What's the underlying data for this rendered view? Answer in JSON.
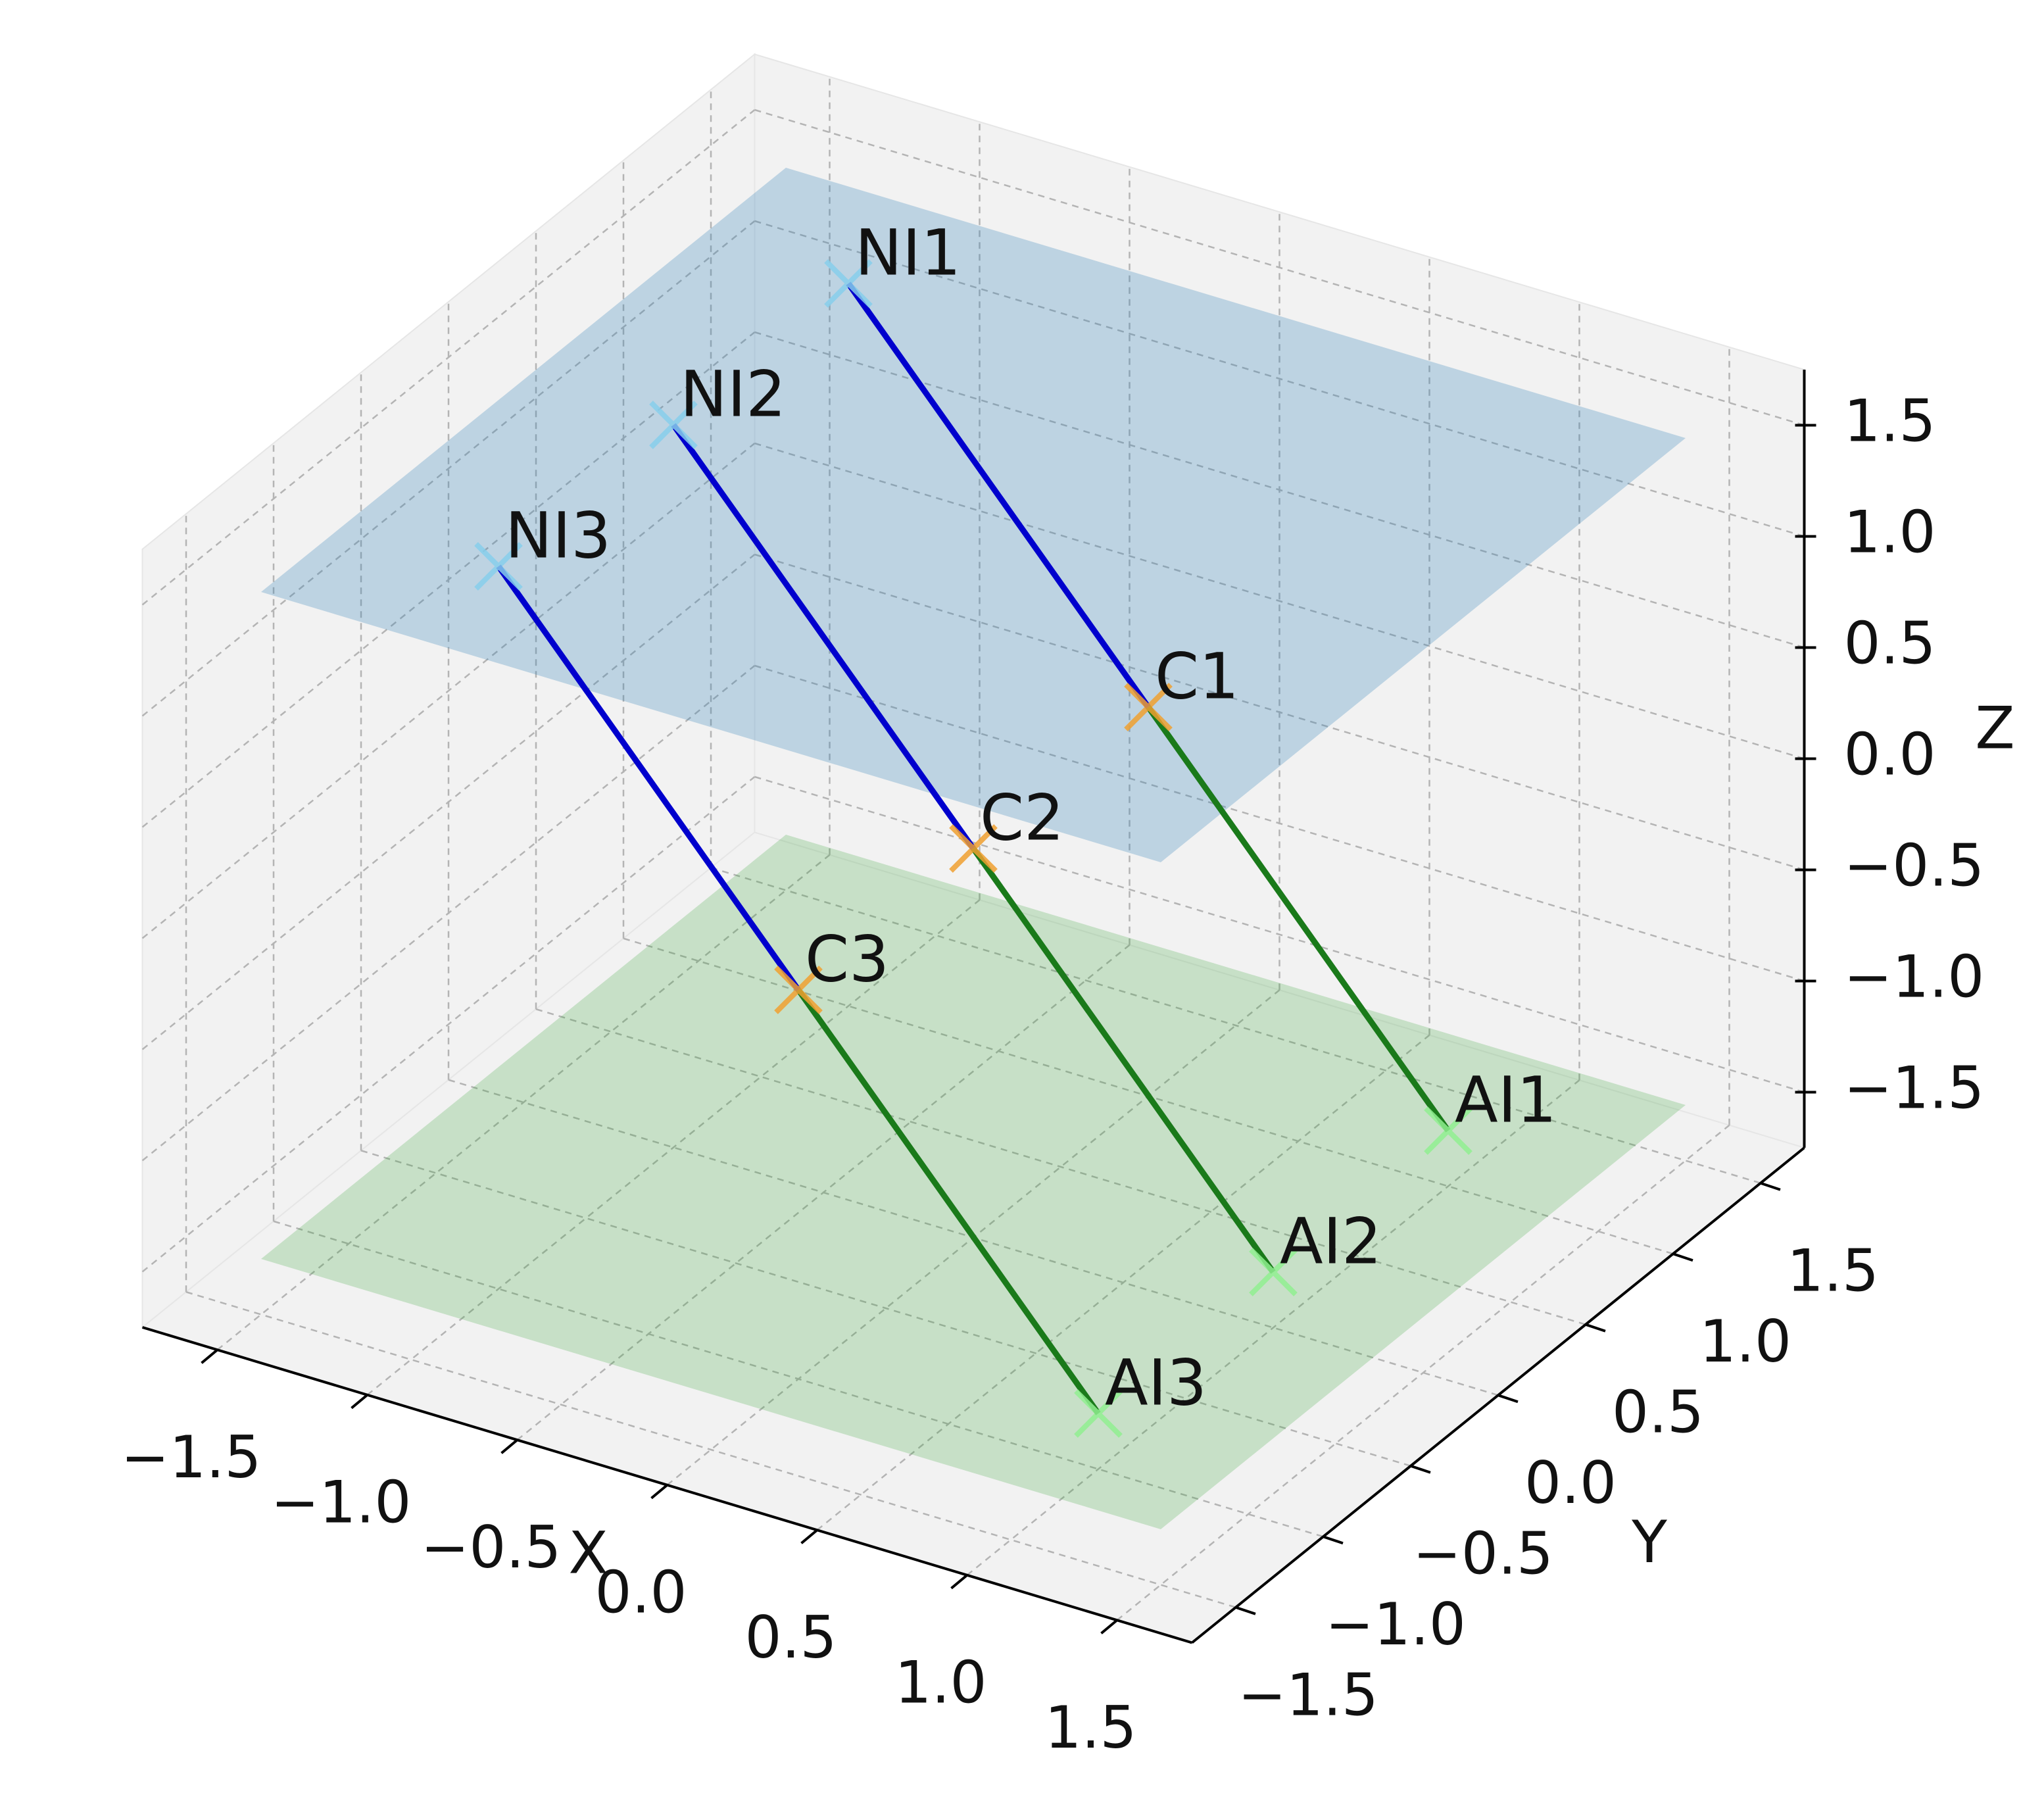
{
  "chart_data": {
    "type": "line3d",
    "xlabel": "X",
    "ylabel": "Y",
    "zlabel": "Z",
    "xlim": [
      -1.75,
      1.75
    ],
    "ylim": [
      -1.75,
      1.75
    ],
    "zlim": [
      -1.75,
      1.75
    ],
    "xticks": [
      {
        "value": -1.5,
        "label": "−1.5"
      },
      {
        "value": -1.0,
        "label": "−1.0"
      },
      {
        "value": -0.5,
        "label": "−0.5"
      },
      {
        "value": 0,
        "label": "0.0"
      },
      0.5,
      {
        "value": 1.0,
        "label": "1.0"
      },
      1.5
    ],
    "yticks": [
      {
        "value": -1.5,
        "label": "−1.5"
      },
      {
        "value": -1.0,
        "label": "−1.0"
      },
      {
        "value": -0.5,
        "label": "−0.5"
      },
      {
        "value": 0,
        "label": "0.0"
      },
      0.5,
      {
        "value": 1.0,
        "label": "1.0"
      },
      1.5
    ],
    "zticks": [
      {
        "value": -1.5,
        "label": "−1.5"
      },
      {
        "value": -1.0,
        "label": "−1.0"
      },
      {
        "value": -0.5,
        "label": "−0.5"
      },
      {
        "value": 0,
        "label": "0.0"
      },
      0.5,
      {
        "value": 1.0,
        "label": "1.0"
      },
      1.5
    ],
    "grid": true,
    "planes": [
      {
        "z": -1.5,
        "x": [
          -1.5,
          1.5
        ],
        "y": [
          -1.5,
          1.5
        ],
        "color": "#2ca02c",
        "alpha": 0.22
      },
      {
        "z": 1.5,
        "x": [
          -1.5,
          1.5
        ],
        "y": [
          -1.5,
          1.5
        ],
        "color": "#1f77b4",
        "alpha": 0.25
      }
    ],
    "lines": [
      {
        "labels": [
          "NI1",
          "C1",
          "AI1"
        ],
        "x": [
          -1,
          0,
          1
        ],
        "y": [
          1,
          1,
          1
        ],
        "z": [
          1.5,
          0,
          -1.5
        ],
        "marker_colors": [
          "#87ceeb",
          "#f0a030",
          "#90ee90"
        ],
        "segment_colors": [
          "#0000cd",
          "#1a7a1a"
        ]
      },
      {
        "labels": [
          "NI2",
          "C2",
          "AI2"
        ],
        "x": [
          -1,
          0,
          1
        ],
        "y": [
          0,
          0,
          0
        ],
        "z": [
          1.5,
          0,
          -1.5
        ],
        "marker_colors": [
          "#87ceeb",
          "#f0a030",
          "#90ee90"
        ],
        "segment_colors": [
          "#0000cd",
          "#1a7a1a"
        ]
      },
      {
        "labels": [
          "NI3",
          "C3",
          "AI3"
        ],
        "x": [
          -1,
          0,
          1
        ],
        "y": [
          -1,
          -1,
          -1
        ],
        "z": [
          1.5,
          0,
          -1.5
        ],
        "marker_colors": [
          "#87ceeb",
          "#f0a030",
          "#90ee90"
        ],
        "segment_colors": [
          "#0000cd",
          "#1a7a1a"
        ]
      }
    ]
  }
}
